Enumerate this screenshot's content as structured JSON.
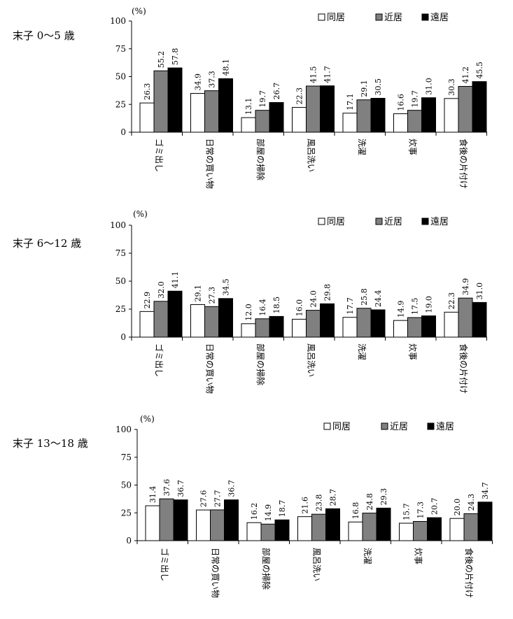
{
  "series_colors": [
    "#ffffff",
    "#808080",
    "#000000"
  ],
  "chart_data": [
    {
      "type": "bar",
      "title": "末子 0～5 歳",
      "unit": "(%)",
      "ylim": [
        0,
        100
      ],
      "yticks": [
        "0",
        "25",
        "50",
        "75",
        "100"
      ],
      "legend_position": "top-right",
      "categories": [
        "ゴミ出し",
        "日常の買い物",
        "部屋の掃除",
        "風呂洗い",
        "洗濯",
        "炊事",
        "食後の片付け"
      ],
      "series": [
        {
          "name": "同居",
          "values": [
            26.3,
            34.9,
            13.1,
            22.3,
            17.1,
            16.6,
            30.3
          ],
          "labels": [
            "26.3",
            "34.9",
            "13.1",
            "22.3",
            "17.1",
            "16.6",
            "30.3"
          ]
        },
        {
          "name": "近居",
          "values": [
            55.2,
            37.3,
            19.7,
            41.5,
            29.1,
            19.7,
            41.2
          ],
          "labels": [
            "55.2",
            "37.3",
            "19.7",
            "41.5",
            "29.1",
            "19.7",
            "41.2"
          ]
        },
        {
          "name": "遠居",
          "values": [
            57.8,
            48.1,
            26.7,
            41.7,
            30.5,
            31.0,
            45.5
          ],
          "labels": [
            "57.8",
            "48.1",
            "26.7",
            "41.7",
            "30.5",
            "31.0",
            "45.5"
          ]
        }
      ]
    },
    {
      "type": "bar",
      "title": "末子 6～12 歳",
      "unit": "(%)",
      "ylim": [
        0,
        100
      ],
      "yticks": [
        "0",
        "25",
        "50",
        "75",
        "100"
      ],
      "legend_position": "top-right",
      "categories": [
        "ゴミ出し",
        "日常の買い物",
        "部屋の掃除",
        "風呂洗い",
        "洗濯",
        "炊事",
        "食後の片付け"
      ],
      "series": [
        {
          "name": "同居",
          "values": [
            22.9,
            29.1,
            12.0,
            16.0,
            17.7,
            14.9,
            22.3
          ],
          "labels": [
            "22.9",
            "29.1",
            "12.0",
            "16.0",
            "17.7",
            "14.9",
            "22.3"
          ]
        },
        {
          "name": "近居",
          "values": [
            32.0,
            27.3,
            16.4,
            24.0,
            25.8,
            17.5,
            34.9
          ],
          "labels": [
            "32.0",
            "27.3",
            "16.4",
            "24.0",
            "25.8",
            "17.5",
            "34.9"
          ]
        },
        {
          "name": "遠居",
          "values": [
            41.1,
            34.5,
            18.5,
            29.8,
            24.4,
            19.0,
            31.0
          ],
          "labels": [
            "41.1",
            "34.5",
            "18.5",
            "29.8",
            "24.4",
            "19.0",
            "31.0"
          ]
        }
      ]
    },
    {
      "type": "bar",
      "title": "末子 13～18 歳",
      "unit": "(%)",
      "ylim": [
        0,
        100
      ],
      "yticks": [
        "0",
        "25",
        "50",
        "75",
        "100"
      ],
      "legend_position": "top-right",
      "categories": [
        "ゴミ出し",
        "日常の買い物",
        "部屋の掃除",
        "風呂洗い",
        "洗濯",
        "炊事",
        "食後の片付け"
      ],
      "series": [
        {
          "name": "同居",
          "values": [
            31.4,
            27.6,
            16.2,
            21.6,
            16.8,
            15.7,
            20.0
          ],
          "labels": [
            "31.4",
            "27.6",
            "16.2",
            "21.6",
            "16.8",
            "15.7",
            "20.0"
          ]
        },
        {
          "name": "近居",
          "values": [
            37.6,
            27.7,
            14.9,
            23.8,
            24.8,
            17.3,
            24.3
          ],
          "labels": [
            "37.6",
            "27.7",
            "14.9",
            "23.8",
            "24.8",
            "17.3",
            "24.3"
          ]
        },
        {
          "name": "遠居",
          "values": [
            36.7,
            36.7,
            18.7,
            28.7,
            29.3,
            20.7,
            34.7
          ],
          "labels": [
            "36.7",
            "36.7",
            "18.7",
            "28.7",
            "29.3",
            "20.7",
            "34.7"
          ]
        }
      ]
    }
  ]
}
